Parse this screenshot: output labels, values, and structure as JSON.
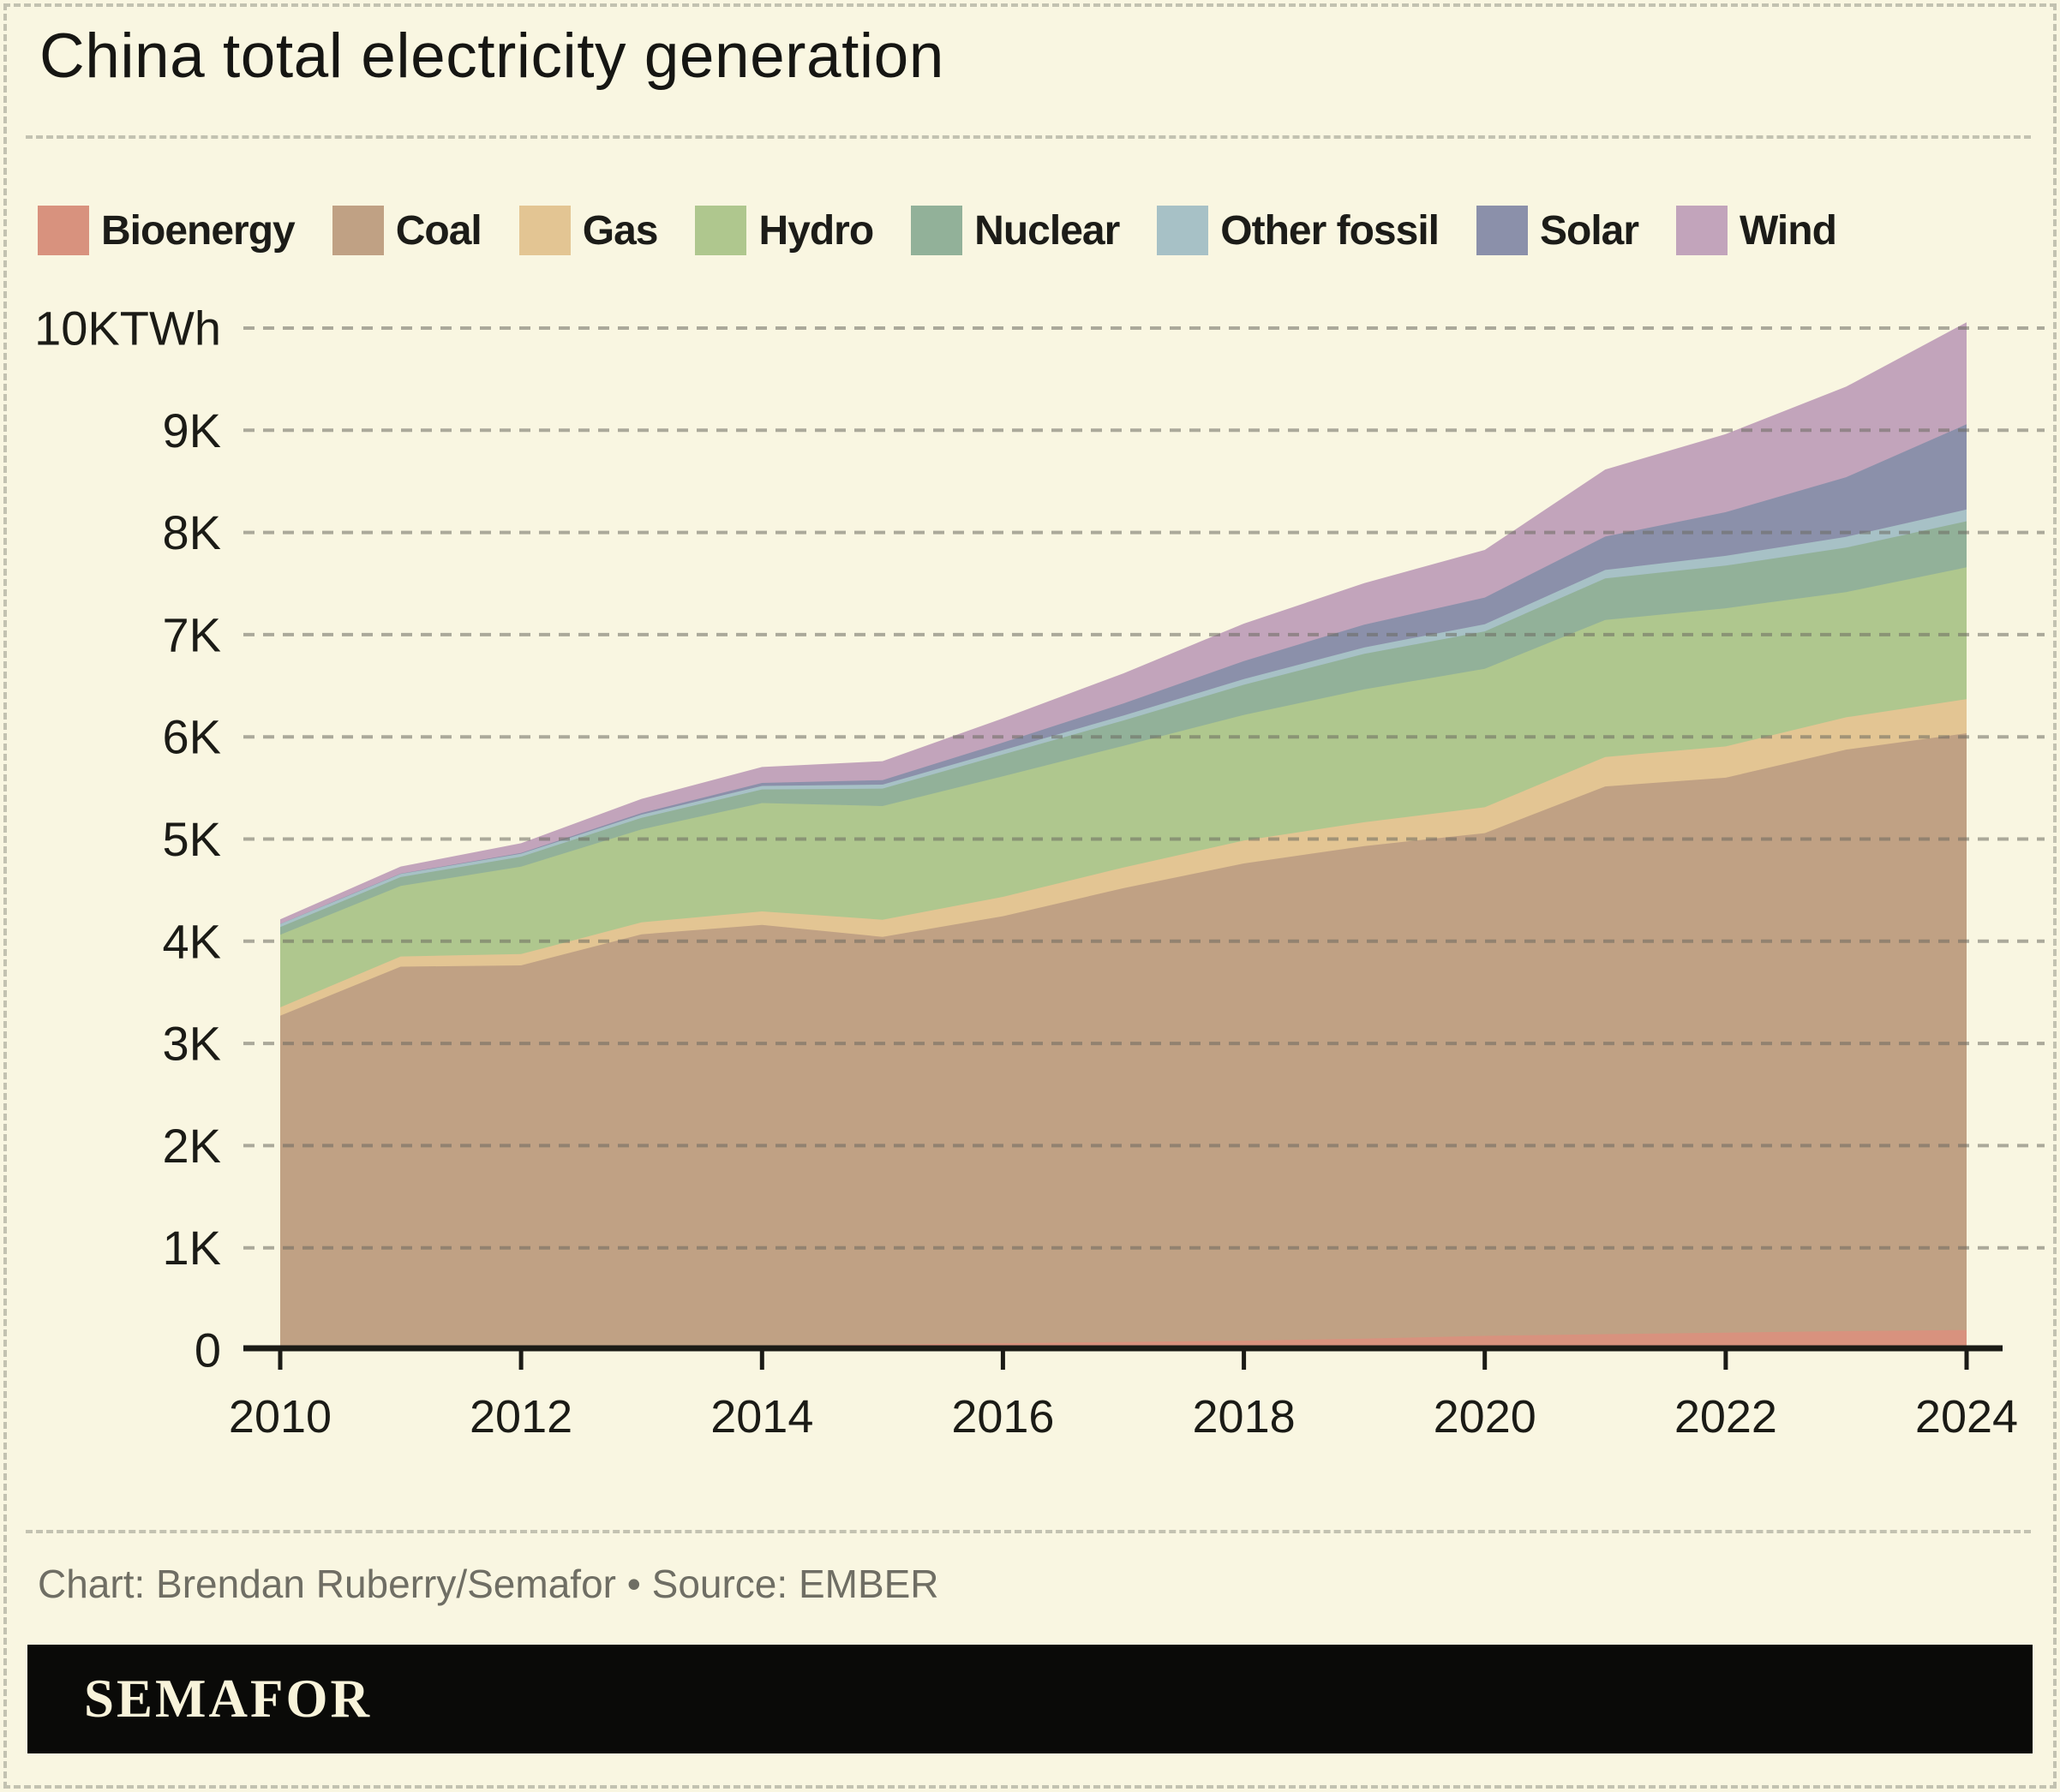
{
  "page": {
    "background": "#f9f6e1",
    "border_color": "#c3c2b1",
    "gridline_color": "#6b6a60",
    "axis_color": "#1b1b16"
  },
  "title": "China total electricity generation",
  "chart_data": {
    "type": "area",
    "stacked": true,
    "title": "China total electricity generation",
    "unit": "TWh",
    "x": [
      2010,
      2011,
      2012,
      2013,
      2014,
      2015,
      2016,
      2017,
      2018,
      2019,
      2020,
      2021,
      2022,
      2023,
      2024
    ],
    "x_tick_labels": [
      "2010",
      "2012",
      "2014",
      "2016",
      "2018",
      "2020",
      "2022",
      "2024"
    ],
    "y_tick_labels": [
      "0",
      "1K",
      "2K",
      "3K",
      "4K",
      "5K",
      "6K",
      "7K",
      "8K",
      "9K",
      "10KTWh"
    ],
    "ylim_twh": [
      0,
      10000
    ],
    "grid": "horizontal-dashed",
    "legend_position": "top",
    "series": [
      {
        "name": "Bioenergy",
        "color": "#d8927e",
        "values": [
          22,
          31,
          34,
          38,
          44,
          53,
          65,
          79,
          91,
          111,
          138,
          155,
          170,
          185,
          195
        ]
      },
      {
        "name": "Coal",
        "color": "#c0a184",
        "values": [
          3250,
          3720,
          3730,
          4030,
          4115,
          3990,
          4180,
          4440,
          4670,
          4820,
          4920,
          5360,
          5430,
          5690,
          5840
        ]
      },
      {
        "name": "Gas",
        "color": "#e3c593",
        "values": [
          81,
          100,
          110,
          117,
          133,
          167,
          189,
          203,
          224,
          233,
          253,
          288,
          306,
          316,
          334
        ]
      },
      {
        "name": "Hydro",
        "color": "#afc78e",
        "values": [
          711,
          690,
          856,
          910,
          1060,
          1113,
          1180,
          1190,
          1230,
          1300,
          1355,
          1340,
          1352,
          1226,
          1290
        ]
      },
      {
        "name": "Nuclear",
        "color": "#92b199",
        "values": [
          74,
          87,
          97,
          112,
          133,
          171,
          213,
          248,
          295,
          348,
          366,
          408,
          418,
          435,
          451
        ]
      },
      {
        "name": "Other fossil",
        "color": "#a7c1c6",
        "values": [
          30,
          30,
          30,
          32,
          35,
          38,
          42,
          48,
          55,
          62,
          70,
          82,
          95,
          105,
          115
        ]
      },
      {
        "name": "Solar",
        "color": "#8b90aa",
        "values": [
          1,
          3,
          6,
          16,
          29,
          45,
          75,
          118,
          177,
          224,
          261,
          327,
          428,
          584,
          834
        ]
      },
      {
        "name": "Wind",
        "color": "#c2a4bb",
        "values": [
          45,
          70,
          96,
          138,
          156,
          185,
          237,
          295,
          366,
          406,
          466,
          656,
          763,
          886,
          998
        ]
      }
    ]
  },
  "footer": {
    "credit": "Chart: Brendan Ruberry/Semafor • Source: EMBER",
    "logo": "SEMAFOR"
  }
}
